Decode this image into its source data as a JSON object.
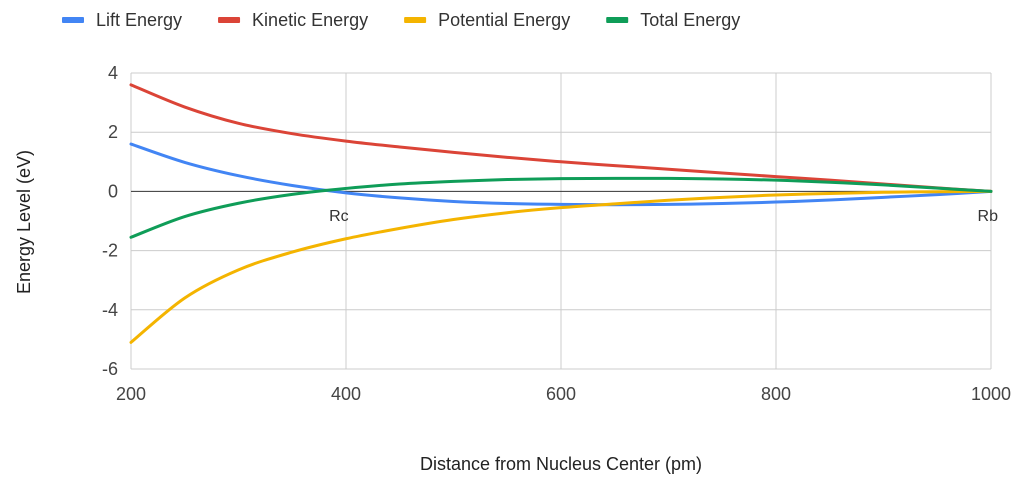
{
  "chart_data": {
    "type": "line",
    "title": "",
    "xlabel": "Distance from Nucleus Center (pm)",
    "ylabel": "Energy Level (eV)",
    "xlim": [
      200,
      1000
    ],
    "ylim": [
      -6,
      4
    ],
    "xticks": [
      "200",
      "400",
      "600",
      "800",
      "1000"
    ],
    "yticks": [
      "4",
      "2",
      "0",
      "-2",
      "-4",
      "-6"
    ],
    "grid": true,
    "legend_position": "top",
    "series": [
      {
        "name": "Lift Energy",
        "color": "#4285f4",
        "x": [
          200,
          250,
          300,
          350,
          400,
          450,
          500,
          550,
          600,
          650,
          700,
          750,
          800,
          850,
          900,
          950,
          1000
        ],
        "y": [
          1.6,
          0.98,
          0.53,
          0.2,
          -0.05,
          -0.22,
          -0.34,
          -0.41,
          -0.44,
          -0.45,
          -0.44,
          -0.41,
          -0.36,
          -0.29,
          -0.2,
          -0.11,
          0.0
        ]
      },
      {
        "name": "Kinetic Energy",
        "color": "#db4437",
        "x": [
          200,
          250,
          300,
          350,
          400,
          450,
          500,
          550,
          600,
          650,
          700,
          750,
          800,
          850,
          900,
          950,
          1000
        ],
        "y": [
          3.6,
          2.85,
          2.3,
          1.95,
          1.7,
          1.5,
          1.32,
          1.15,
          1.0,
          0.87,
          0.75,
          0.62,
          0.5,
          0.38,
          0.25,
          0.12,
          0.0
        ]
      },
      {
        "name": "Potential Energy",
        "color": "#f4b400",
        "x": [
          200,
          250,
          300,
          350,
          400,
          450,
          500,
          550,
          600,
          650,
          700,
          750,
          800,
          850,
          900,
          950,
          1000
        ],
        "y": [
          -5.1,
          -3.6,
          -2.65,
          -2.05,
          -1.6,
          -1.25,
          -0.95,
          -0.72,
          -0.55,
          -0.42,
          -0.3,
          -0.2,
          -0.12,
          -0.07,
          -0.03,
          -0.01,
          0.0
        ]
      },
      {
        "name": "Total Energy",
        "color": "#0f9d58",
        "x": [
          200,
          250,
          300,
          350,
          400,
          450,
          500,
          550,
          600,
          650,
          700,
          750,
          800,
          850,
          900,
          950,
          1000
        ],
        "y": [
          -1.55,
          -0.85,
          -0.4,
          -0.1,
          0.1,
          0.25,
          0.34,
          0.4,
          0.43,
          0.44,
          0.44,
          0.42,
          0.38,
          0.31,
          0.22,
          0.11,
          0.0
        ]
      }
    ],
    "annotations": [
      {
        "text": "Rc",
        "x": 385,
        "y": -0.6
      },
      {
        "text": "Rb",
        "x": 1000,
        "y": -0.6
      }
    ]
  }
}
